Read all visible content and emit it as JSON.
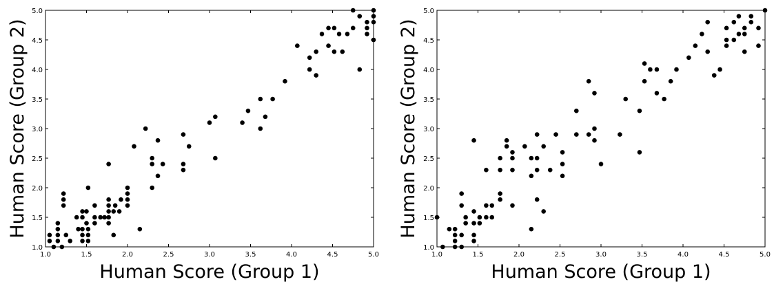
{
  "chart_data": [
    {
      "type": "scatter",
      "xlabel": "Human Score (Group 1)",
      "ylabel": "Human Score (Group 2)",
      "xlim": [
        1.0,
        5.0
      ],
      "ylim": [
        1.0,
        5.0
      ],
      "xticks": [
        "1.0",
        "1.5",
        "2.0",
        "2.5",
        "3.0",
        "3.5",
        "4.0",
        "4.5",
        "5.0"
      ],
      "yticks": [
        "1.0",
        "1.5",
        "2.0",
        "2.5",
        "3.0",
        "3.5",
        "4.0",
        "4.5",
        "5.0"
      ],
      "grid": false,
      "marker_color": "#000000",
      "points": [
        [
          1.05,
          1.2
        ],
        [
          1.05,
          1.1
        ],
        [
          1.1,
          1.0
        ],
        [
          1.15,
          1.4
        ],
        [
          1.15,
          1.3
        ],
        [
          1.15,
          1.2
        ],
        [
          1.15,
          1.1
        ],
        [
          1.2,
          1.0
        ],
        [
          1.22,
          1.9
        ],
        [
          1.22,
          1.8
        ],
        [
          1.22,
          1.7
        ],
        [
          1.25,
          1.2
        ],
        [
          1.3,
          1.1
        ],
        [
          1.38,
          1.5
        ],
        [
          1.4,
          1.3
        ],
        [
          1.45,
          1.6
        ],
        [
          1.45,
          1.5
        ],
        [
          1.45,
          1.3
        ],
        [
          1.45,
          1.2
        ],
        [
          1.45,
          1.1
        ],
        [
          1.5,
          1.6
        ],
        [
          1.5,
          1.4
        ],
        [
          1.52,
          2.0
        ],
        [
          1.52,
          1.3
        ],
        [
          1.52,
          1.2
        ],
        [
          1.52,
          1.1
        ],
        [
          1.6,
          1.7
        ],
        [
          1.6,
          1.5
        ],
        [
          1.6,
          1.4
        ],
        [
          1.67,
          1.5
        ],
        [
          1.72,
          1.5
        ],
        [
          1.77,
          2.4
        ],
        [
          1.77,
          1.8
        ],
        [
          1.77,
          1.7
        ],
        [
          1.77,
          1.6
        ],
        [
          1.77,
          1.5
        ],
        [
          1.77,
          1.4
        ],
        [
          1.83,
          1.6
        ],
        [
          1.83,
          1.2
        ],
        [
          1.85,
          1.7
        ],
        [
          1.9,
          1.6
        ],
        [
          1.92,
          1.8
        ],
        [
          2.0,
          2.0
        ],
        [
          2.0,
          1.9
        ],
        [
          2.0,
          1.8
        ],
        [
          2.0,
          1.7
        ],
        [
          2.08,
          2.7
        ],
        [
          2.15,
          1.3
        ],
        [
          2.22,
          3.0
        ],
        [
          2.3,
          2.5
        ],
        [
          2.3,
          2.4
        ],
        [
          2.3,
          2.0
        ],
        [
          2.37,
          2.8
        ],
        [
          2.37,
          2.2
        ],
        [
          2.43,
          2.4
        ],
        [
          2.68,
          2.9
        ],
        [
          2.68,
          2.4
        ],
        [
          2.68,
          2.3
        ],
        [
          2.75,
          2.7
        ],
        [
          3.0,
          3.1
        ],
        [
          3.07,
          3.2
        ],
        [
          3.07,
          2.5
        ],
        [
          3.4,
          3.1
        ],
        [
          3.47,
          3.3
        ],
        [
          3.62,
          3.5
        ],
        [
          3.62,
          3.0
        ],
        [
          3.68,
          3.2
        ],
        [
          3.77,
          3.5
        ],
        [
          3.92,
          3.8
        ],
        [
          4.07,
          4.4
        ],
        [
          4.22,
          4.2
        ],
        [
          4.22,
          4.0
        ],
        [
          4.3,
          4.3
        ],
        [
          4.3,
          3.9
        ],
        [
          4.37,
          4.6
        ],
        [
          4.45,
          4.7
        ],
        [
          4.45,
          4.4
        ],
        [
          4.52,
          4.7
        ],
        [
          4.52,
          4.3
        ],
        [
          4.58,
          4.6
        ],
        [
          4.62,
          4.3
        ],
        [
          4.68,
          4.6
        ],
        [
          4.75,
          5.0
        ],
        [
          4.75,
          4.7
        ],
        [
          4.83,
          4.9
        ],
        [
          4.83,
          4.0
        ],
        [
          4.92,
          4.8
        ],
        [
          4.92,
          4.7
        ],
        [
          4.92,
          4.6
        ],
        [
          5.0,
          5.0
        ],
        [
          5.0,
          4.9
        ],
        [
          5.0,
          4.8
        ],
        [
          5.0,
          4.5
        ]
      ]
    },
    {
      "type": "scatter",
      "xlabel": "Human Score (Group 1)",
      "ylabel": "Human Score (Group 2)",
      "xlim": [
        1.0,
        5.0
      ],
      "ylim": [
        1.0,
        5.0
      ],
      "xticks": [
        "1.0",
        "1.5",
        "2.0",
        "2.5",
        "3.0",
        "3.5",
        "4.0",
        "4.5",
        "5.0"
      ],
      "yticks": [
        "1.0",
        "1.5",
        "2.0",
        "2.5",
        "3.0",
        "3.5",
        "4.0",
        "4.5",
        "5.0"
      ],
      "grid": false,
      "marker_color": "#000000",
      "points": [
        [
          1.0,
          1.5
        ],
        [
          1.07,
          1.0
        ],
        [
          1.15,
          1.3
        ],
        [
          1.22,
          1.3
        ],
        [
          1.22,
          1.2
        ],
        [
          1.22,
          1.1
        ],
        [
          1.22,
          1.0
        ],
        [
          1.3,
          1.9
        ],
        [
          1.3,
          1.7
        ],
        [
          1.3,
          1.2
        ],
        [
          1.3,
          1.0
        ],
        [
          1.35,
          1.5
        ],
        [
          1.35,
          1.4
        ],
        [
          1.45,
          2.8
        ],
        [
          1.45,
          1.6
        ],
        [
          1.45,
          1.4
        ],
        [
          1.45,
          1.2
        ],
        [
          1.45,
          1.1
        ],
        [
          1.52,
          1.5
        ],
        [
          1.52,
          1.4
        ],
        [
          1.6,
          2.3
        ],
        [
          1.6,
          1.7
        ],
        [
          1.6,
          1.5
        ],
        [
          1.67,
          1.7
        ],
        [
          1.67,
          1.5
        ],
        [
          1.77,
          2.5
        ],
        [
          1.77,
          2.3
        ],
        [
          1.77,
          1.9
        ],
        [
          1.77,
          1.8
        ],
        [
          1.85,
          2.8
        ],
        [
          1.85,
          2.7
        ],
        [
          1.92,
          2.6
        ],
        [
          1.92,
          2.5
        ],
        [
          1.92,
          2.3
        ],
        [
          1.92,
          1.7
        ],
        [
          2.07,
          2.7
        ],
        [
          2.15,
          2.5
        ],
        [
          2.15,
          2.2
        ],
        [
          2.15,
          1.3
        ],
        [
          2.22,
          2.9
        ],
        [
          2.22,
          2.5
        ],
        [
          2.22,
          2.3
        ],
        [
          2.22,
          1.8
        ],
        [
          2.3,
          2.7
        ],
        [
          2.3,
          1.6
        ],
        [
          2.38,
          2.3
        ],
        [
          2.45,
          2.9
        ],
        [
          2.53,
          2.6
        ],
        [
          2.53,
          2.4
        ],
        [
          2.53,
          2.2
        ],
        [
          2.7,
          3.3
        ],
        [
          2.7,
          2.9
        ],
        [
          2.85,
          3.8
        ],
        [
          2.85,
          2.9
        ],
        [
          2.92,
          3.6
        ],
        [
          2.92,
          3.0
        ],
        [
          2.92,
          2.8
        ],
        [
          3.0,
          2.4
        ],
        [
          3.23,
          2.9
        ],
        [
          3.3,
          3.5
        ],
        [
          3.47,
          3.3
        ],
        [
          3.47,
          2.6
        ],
        [
          3.53,
          4.1
        ],
        [
          3.53,
          3.8
        ],
        [
          3.6,
          4.0
        ],
        [
          3.68,
          4.0
        ],
        [
          3.68,
          3.6
        ],
        [
          3.77,
          3.5
        ],
        [
          3.85,
          3.8
        ],
        [
          3.92,
          4.0
        ],
        [
          4.07,
          4.2
        ],
        [
          4.15,
          4.4
        ],
        [
          4.23,
          4.6
        ],
        [
          4.3,
          4.8
        ],
        [
          4.3,
          4.3
        ],
        [
          4.38,
          3.9
        ],
        [
          4.45,
          4.0
        ],
        [
          4.53,
          4.7
        ],
        [
          4.53,
          4.5
        ],
        [
          4.53,
          4.4
        ],
        [
          4.62,
          4.8
        ],
        [
          4.62,
          4.5
        ],
        [
          4.68,
          4.9
        ],
        [
          4.68,
          4.6
        ],
        [
          4.75,
          4.7
        ],
        [
          4.75,
          4.6
        ],
        [
          4.75,
          4.3
        ],
        [
          4.83,
          4.9
        ],
        [
          4.83,
          4.8
        ],
        [
          4.92,
          4.7
        ],
        [
          4.92,
          4.4
        ],
        [
          5.0,
          5.0
        ]
      ]
    }
  ]
}
